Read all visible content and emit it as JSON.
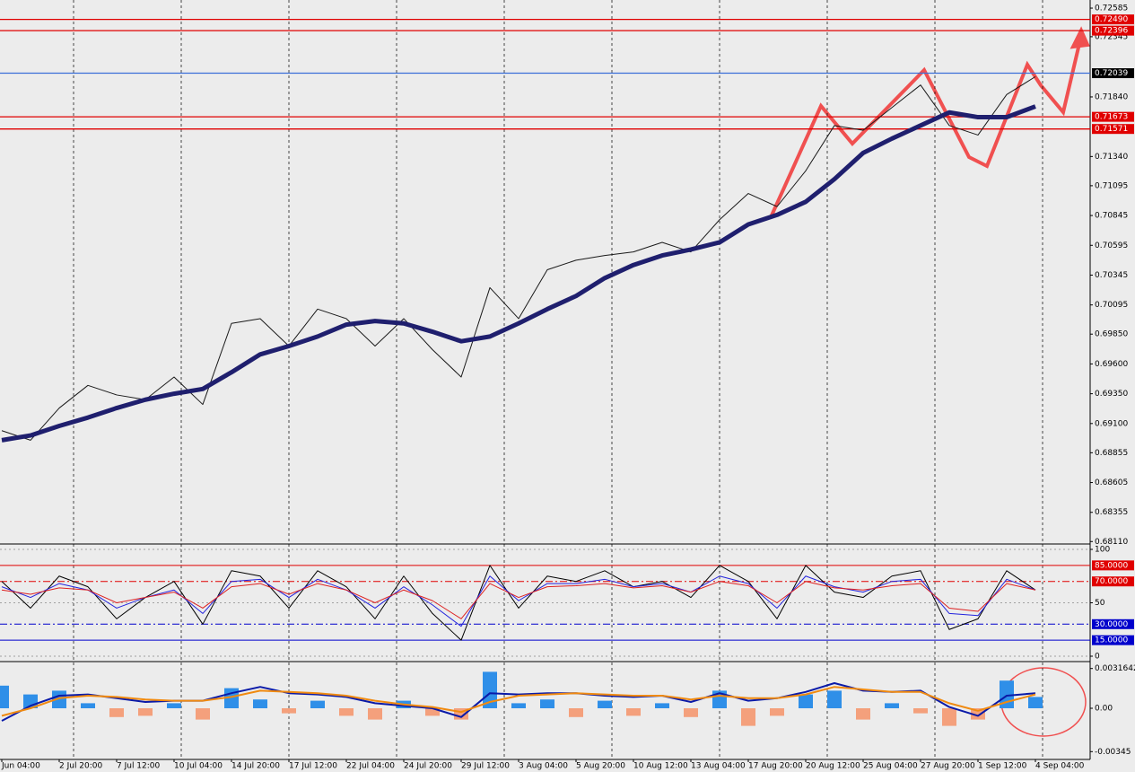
{
  "chart_data": [
    {
      "type": "line",
      "categories": [
        "Jun 04:00",
        null,
        "2 Jul 20:00",
        null,
        "7 Jul 12:00",
        null,
        "10 Jul 04:00",
        null,
        "14 Jul 20:00",
        null,
        "17 Jul 12:00",
        null,
        "22 Jul 04:00",
        null,
        "24 Jul 20:00",
        null,
        "29 Jul 12:00",
        null,
        "3 Aug 04:00",
        null,
        "5 Aug 20:00",
        null,
        "10 Aug 12:00",
        null,
        "13 Aug 04:00",
        null,
        "17 Aug 20:00",
        null,
        "20 Aug 12:00",
        null,
        "25 Aug 04:00",
        null,
        "27 Aug 20:00",
        null,
        "1 Sep 12:00",
        null,
        "4 Sep 04:00"
      ],
      "series": [
        {
          "color": "#1a1a1a",
          "values": [
            0.6904,
            0.6896,
            0.6923,
            0.6942,
            0.6934,
            0.693,
            0.6949,
            0.6926,
            0.6994,
            0.6998,
            0.6975,
            0.7006,
            0.6998,
            0.6975,
            0.6998,
            0.6972,
            0.6949,
            0.7024,
            0.6998,
            0.7039,
            0.7047,
            0.7051,
            0.7054,
            0.7062,
            0.7054,
            0.7081,
            0.7103,
            0.7092,
            0.7122,
            0.716,
            0.7156,
            0.7175,
            0.7194,
            0.716,
            0.7152,
            0.7186,
            0.7201
          ]
        },
        {
          "color": "#1f1f6e",
          "values": [
            0.6896,
            0.69,
            0.6908,
            0.6915,
            0.6923,
            0.693,
            0.6935,
            0.6939,
            0.6953,
            0.6968,
            0.6975,
            0.6983,
            0.6993,
            0.6996,
            0.6994,
            0.6987,
            0.6979,
            0.6983,
            0.6994,
            0.7006,
            0.7017,
            0.7032,
            0.7043,
            0.7051,
            0.7056,
            0.7062,
            0.7077,
            0.7085,
            0.7096,
            0.7115,
            0.7137,
            0.7149,
            0.716,
            0.7171,
            0.7167,
            0.7167,
            0.7176
          ]
        }
      ],
      "ylim": [
        0.68097,
        0.72653
      ],
      "yticks": [
        0.72585,
        0.72345,
        {
          "value": 0.7184,
          "label": "0.71840"
        },
        {
          "value": 0.7134,
          "label": "0.71340"
        },
        0.71095,
        0.70845,
        0.70595,
        0.70345,
        0.70095,
        {
          "value": 0.6985,
          "label": "0.69850"
        },
        {
          "value": 0.696,
          "label": "0.69600"
        },
        {
          "value": 0.6935,
          "label": "0.69350"
        },
        {
          "value": 0.691,
          "label": "0.69100"
        },
        0.68855,
        0.68605,
        0.68355,
        {
          "value": 0.6811,
          "label": "0.68110"
        }
      ],
      "levels": [
        {
          "value": 0.7249,
          "label": "0.72490",
          "color": "#e00000",
          "box_color": "#e00000",
          "style": "solid"
        },
        {
          "value": 0.72396,
          "label": "0.72396",
          "color": "#e00000",
          "box_color": "#e00000",
          "style": "solid"
        },
        {
          "value": 0.72039,
          "label": "0.72039",
          "color": "#3a6fd8",
          "box_color": "#000000",
          "style": "solid"
        },
        {
          "value": 0.71673,
          "label": "0.71673",
          "color": "#e00000",
          "box_color": "#e00000",
          "style": "solid"
        },
        {
          "value": 0.71571,
          "label": "0.71571",
          "color": "#e00000",
          "box_color": "#e00000",
          "style": "solid"
        }
      ]
    },
    {
      "type": "line",
      "series": [
        {
          "color": "#000000",
          "values": [
            70,
            45,
            75,
            65,
            35,
            55,
            70,
            30,
            80,
            75,
            45,
            80,
            65,
            35,
            75,
            40,
            15,
            85,
            45,
            75,
            70,
            80,
            65,
            70,
            55,
            85,
            70,
            35,
            85,
            60,
            55,
            75,
            80,
            25,
            35,
            80,
            62
          ]
        },
        {
          "color": "#2222dd",
          "values": [
            65,
            55,
            68,
            62,
            45,
            55,
            62,
            40,
            70,
            72,
            55,
            72,
            62,
            45,
            65,
            48,
            28,
            75,
            52,
            68,
            68,
            72,
            65,
            68,
            60,
            75,
            68,
            45,
            75,
            65,
            60,
            70,
            72,
            40,
            38,
            72,
            62
          ]
        },
        {
          "color": "#dd2222",
          "values": [
            62,
            58,
            64,
            62,
            50,
            55,
            60,
            45,
            65,
            68,
            58,
            68,
            62,
            50,
            62,
            52,
            35,
            68,
            55,
            65,
            66,
            68,
            64,
            66,
            60,
            70,
            66,
            50,
            70,
            64,
            62,
            66,
            68,
            45,
            42,
            68,
            62
          ]
        }
      ],
      "ylim": [
        0,
        100
      ],
      "yticks": [
        100,
        50,
        0
      ],
      "levels": [
        {
          "value": 85,
          "label": "85.0000",
          "color": "#e00000",
          "box_color": "#e00000",
          "style": "solid"
        },
        {
          "value": 70,
          "label": "70.0000",
          "color": "#e00000",
          "box_color": "#e00000",
          "style": "dashdot"
        },
        {
          "value": 30,
          "label": "30.0000",
          "color": "#0000cc",
          "box_color": "#0000cc",
          "style": "dashdot"
        },
        {
          "value": 15,
          "label": "15.0000",
          "color": "#0000cc",
          "box_color": "#0000cc",
          "style": "solid"
        }
      ]
    },
    {
      "type": "bar",
      "values": [
        0.0018,
        0.0011,
        0.0014,
        0.0004,
        -0.0007,
        -0.0006,
        0.0004,
        -0.0009,
        0.0016,
        0.0007,
        -0.0004,
        0.0006,
        -0.0006,
        -0.0009,
        0.0006,
        -0.0006,
        -0.0009,
        0.0029,
        0.0004,
        0.0007,
        -0.0007,
        0.0006,
        -0.0006,
        0.0004,
        -0.0007,
        0.0014,
        -0.0014,
        -0.0006,
        0.0011,
        0.0014,
        -0.0009,
        0.0004,
        -0.0004,
        -0.0014,
        -0.0009,
        0.0022,
        0.0009
      ],
      "color": "#2f8fe8",
      "negative_color": "#f4a07c",
      "series": [
        {
          "color": "#0a1aa8",
          "values": [
            -0.001,
            0.0002,
            0.001,
            0.0011,
            0.0008,
            0.0005,
            0.0006,
            0.0006,
            0.0012,
            0.0017,
            0.0012,
            0.0011,
            0.0009,
            0.0004,
            0.0002,
            0.0,
            -0.0007,
            0.0012,
            0.0011,
            0.0012,
            0.0012,
            0.001,
            0.0009,
            0.001,
            0.0005,
            0.0012,
            0.0006,
            0.0008,
            0.0013,
            0.002,
            0.0014,
            0.0013,
            0.0014,
            0.0001,
            -0.0006,
            0.001,
            0.0012
          ]
        },
        {
          "color": "#f08a10",
          "values": [
            -0.0006,
            0.0,
            0.0008,
            0.001,
            0.0009,
            0.0007,
            0.0006,
            0.0006,
            0.0009,
            0.0014,
            0.0013,
            0.0012,
            0.001,
            0.0006,
            0.0003,
            0.0001,
            -0.0003,
            0.0005,
            0.001,
            0.0011,
            0.0012,
            0.0011,
            0.001,
            0.001,
            0.0007,
            0.001,
            0.0008,
            0.0008,
            0.0011,
            0.0017,
            0.0015,
            0.0013,
            0.0013,
            0.0004,
            -0.0002,
            0.0005,
            0.0011
          ]
        }
      ],
      "ylim": [
        -0.004,
        0.0035
      ],
      "yticks": [
        0.0031642,
        {
          "value": 0,
          "label": "0.00"
        },
        -0.00345
      ]
    }
  ]
}
